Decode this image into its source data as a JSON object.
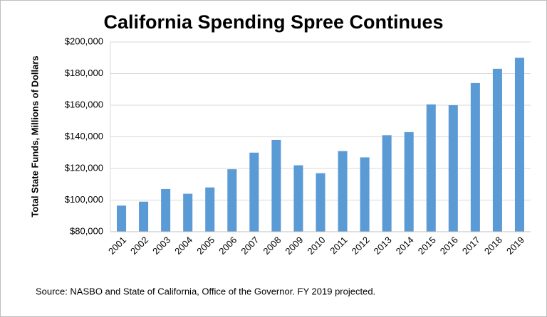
{
  "chart_data": {
    "type": "bar",
    "title": "California Spending Spree Continues",
    "y_label": "Total State Funds, Millions of Dollars",
    "note": "Source: NASBO and  State of California, Office of the Governor. FY 2019 projected.",
    "categories": [
      "2001",
      "2002",
      "2003",
      "2004",
      "2005",
      "2006",
      "2007",
      "2008",
      "2009",
      "2010",
      "2011",
      "2012",
      "2013",
      "2014",
      "2015",
      "2016",
      "2017",
      "2018",
      "2019"
    ],
    "values": [
      96500,
      99000,
      107000,
      104000,
      108000,
      119500,
      130000,
      138000,
      122000,
      117000,
      131000,
      127000,
      141000,
      143000,
      160500,
      160000,
      174000,
      183000,
      190000
    ],
    "color": "#5b9bd5",
    "ylim": [
      80000,
      200000
    ],
    "yticks": [
      {
        "value": 80000,
        "label": "$80,000"
      },
      {
        "value": 100000,
        "label": "$100,000"
      },
      {
        "value": 120000,
        "label": "$120,000"
      },
      {
        "value": 140000,
        "label": "$140,000"
      },
      {
        "value": 160000,
        "label": "$160,000"
      },
      {
        "value": 180000,
        "label": "$180,000"
      },
      {
        "value": 200000,
        "label": "$200,000"
      }
    ],
    "grid": true
  }
}
